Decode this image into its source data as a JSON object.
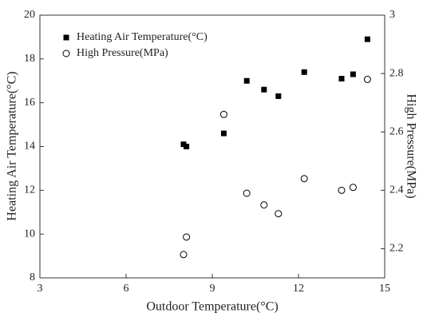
{
  "chart_data": {
    "type": "scatter",
    "x_label": "Outdoor Temperature(°C)",
    "y_label": "Heating Air Temperature(°C)",
    "y2_label": "High Pressure(MPa)",
    "xlim": [
      3,
      15
    ],
    "xticks": [
      3,
      6,
      9,
      12,
      15
    ],
    "ylim": [
      8,
      20
    ],
    "yticks": [
      8,
      10,
      12,
      14,
      16,
      18,
      20
    ],
    "y2lim": [
      2.1,
      3.0
    ],
    "y2ticks": [
      2.2,
      2.4,
      2.6,
      2.8,
      3
    ],
    "legend": "upper left",
    "series": [
      {
        "name": "Heating Air Temperature(°C)",
        "marker": "square",
        "color": "#000000",
        "x": [
          8.0,
          8.1,
          9.4,
          10.2,
          10.8,
          11.3,
          12.2,
          13.5,
          13.9,
          14.4
        ],
        "values": [
          14.1,
          14.0,
          14.6,
          17.0,
          16.6,
          16.3,
          17.4,
          17.1,
          17.3,
          18.9
        ]
      },
      {
        "name": "High Pressure(MPa)",
        "marker": "circle",
        "color": "#000000",
        "axis": "y2",
        "x": [
          8.0,
          8.1,
          9.4,
          10.2,
          10.8,
          11.3,
          12.2,
          13.5,
          13.9,
          14.4
        ],
        "values": [
          2.18,
          2.24,
          2.66,
          2.39,
          2.35,
          2.32,
          2.44,
          2.4,
          2.41,
          2.78
        ]
      }
    ]
  }
}
